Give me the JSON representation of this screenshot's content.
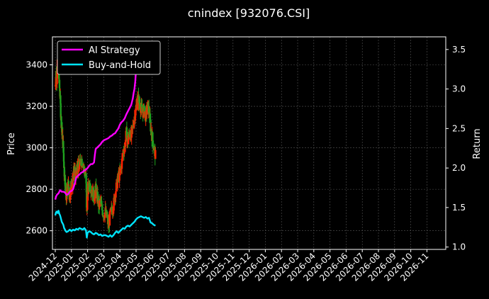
{
  "chart_data": {
    "type": "line",
    "title": "cnindex [932076.CSI]",
    "xlabel": "",
    "ylabel_left": "Price",
    "ylabel_right": "Return",
    "x_ticks": [
      "2024-12",
      "2025-01",
      "2025-02",
      "2025-03",
      "2025-04",
      "2025-05",
      "2025-06",
      "2025-07",
      "2025-08",
      "2025-09",
      "2025-10",
      "2025-11",
      "2025-12",
      "2026-01",
      "2026-02",
      "2026-03",
      "2026-04",
      "2026-05",
      "2026-06",
      "2026-07",
      "2026-08",
      "2026-09",
      "2026-10",
      "2026-11"
    ],
    "y_left_ticks": [
      2600,
      2800,
      3000,
      3200,
      3400
    ],
    "y_left_range": [
      2510,
      3535
    ],
    "y_right_ticks": [
      "1.0",
      "1.5",
      "2.0",
      "2.5",
      "3.0",
      "3.5"
    ],
    "y_right_range": [
      0.97,
      3.66
    ],
    "grid": true,
    "legend_position": "top-left",
    "colors": {
      "up": "#ff2200",
      "down": "#1fa31f",
      "strategy": "#ff00ff",
      "buyhold": "#00e5ff",
      "background": "#000000",
      "grid": "#555555"
    },
    "series": [
      {
        "name": "AI Strategy",
        "axis": "right",
        "points": [
          [
            0,
            1.6
          ],
          [
            0.05,
            1.64
          ],
          [
            0.1,
            1.66
          ],
          [
            0.2,
            1.68
          ],
          [
            0.3,
            1.72
          ],
          [
            0.4,
            1.7
          ],
          [
            0.5,
            1.7
          ],
          [
            0.6,
            1.69
          ],
          [
            0.7,
            1.66
          ],
          [
            0.8,
            1.67
          ],
          [
            0.9,
            1.7
          ],
          [
            1.0,
            1.71
          ],
          [
            1.1,
            1.73
          ],
          [
            1.2,
            1.8
          ],
          [
            1.3,
            1.88
          ],
          [
            1.4,
            1.9
          ],
          [
            1.5,
            1.92
          ],
          [
            1.6,
            1.94
          ],
          [
            1.7,
            1.95
          ],
          [
            1.8,
            1.97
          ],
          [
            1.9,
            1.98
          ],
          [
            2.0,
            2.0
          ],
          [
            2.1,
            2.03
          ],
          [
            2.2,
            2.05
          ],
          [
            2.3,
            2.05
          ],
          [
            2.4,
            2.07
          ],
          [
            2.45,
            2.17
          ],
          [
            2.5,
            2.24
          ],
          [
            2.6,
            2.26
          ],
          [
            2.7,
            2.28
          ],
          [
            2.8,
            2.3
          ],
          [
            2.9,
            2.33
          ],
          [
            3.0,
            2.35
          ],
          [
            3.1,
            2.36
          ],
          [
            3.2,
            2.37
          ],
          [
            3.3,
            2.38
          ],
          [
            3.4,
            2.4
          ],
          [
            3.5,
            2.41
          ],
          [
            3.6,
            2.43
          ],
          [
            3.7,
            2.44
          ],
          [
            3.8,
            2.47
          ],
          [
            3.9,
            2.5
          ],
          [
            4.0,
            2.55
          ],
          [
            4.1,
            2.58
          ],
          [
            4.2,
            2.6
          ],
          [
            4.3,
            2.63
          ],
          [
            4.4,
            2.68
          ],
          [
            4.5,
            2.72
          ],
          [
            4.6,
            2.76
          ],
          [
            4.7,
            2.8
          ],
          [
            4.8,
            2.88
          ],
          [
            4.85,
            2.95
          ],
          [
            4.9,
            3.0
          ],
          [
            4.95,
            3.1
          ],
          [
            5.0,
            3.25
          ],
          [
            5.05,
            3.3
          ],
          [
            5.1,
            3.37
          ],
          [
            5.2,
            3.4
          ],
          [
            5.3,
            3.42
          ],
          [
            5.4,
            3.45
          ],
          [
            5.5,
            3.47
          ],
          [
            5.6,
            3.48
          ],
          [
            5.7,
            3.5
          ],
          [
            5.8,
            3.52
          ],
          [
            5.9,
            3.55
          ],
          [
            6.0,
            3.56
          ],
          [
            6.1,
            3.55
          ],
          [
            6.2,
            3.56
          ]
        ]
      },
      {
        "name": "Buy-and-Hold",
        "axis": "right",
        "points": [
          [
            0,
            1.4
          ],
          [
            0.05,
            1.44
          ],
          [
            0.1,
            1.45
          ],
          [
            0.15,
            1.43
          ],
          [
            0.2,
            1.46
          ],
          [
            0.25,
            1.42
          ],
          [
            0.3,
            1.4
          ],
          [
            0.35,
            1.36
          ],
          [
            0.4,
            1.32
          ],
          [
            0.45,
            1.3
          ],
          [
            0.5,
            1.28
          ],
          [
            0.55,
            1.24
          ],
          [
            0.6,
            1.22
          ],
          [
            0.65,
            1.2
          ],
          [
            0.7,
            1.19
          ],
          [
            0.8,
            1.2
          ],
          [
            0.9,
            1.22
          ],
          [
            1.0,
            1.2
          ],
          [
            1.1,
            1.22
          ],
          [
            1.2,
            1.21
          ],
          [
            1.3,
            1.23
          ],
          [
            1.4,
            1.22
          ],
          [
            1.5,
            1.24
          ],
          [
            1.6,
            1.23
          ],
          [
            1.7,
            1.22
          ],
          [
            1.8,
            1.24
          ],
          [
            1.9,
            1.21
          ],
          [
            1.95,
            1.12
          ],
          [
            2.0,
            1.18
          ],
          [
            2.1,
            1.2
          ],
          [
            2.2,
            1.19
          ],
          [
            2.3,
            1.17
          ],
          [
            2.4,
            1.16
          ],
          [
            2.5,
            1.18
          ],
          [
            2.6,
            1.17
          ],
          [
            2.7,
            1.15
          ],
          [
            2.8,
            1.16
          ],
          [
            2.9,
            1.14
          ],
          [
            3.0,
            1.15
          ],
          [
            3.1,
            1.15
          ],
          [
            3.2,
            1.14
          ],
          [
            3.3,
            1.13
          ],
          [
            3.4,
            1.15
          ],
          [
            3.5,
            1.13
          ],
          [
            3.6,
            1.15
          ],
          [
            3.7,
            1.18
          ],
          [
            3.8,
            1.2
          ],
          [
            3.9,
            1.18
          ],
          [
            4.0,
            1.2
          ],
          [
            4.1,
            1.22
          ],
          [
            4.2,
            1.24
          ],
          [
            4.3,
            1.23
          ],
          [
            4.4,
            1.26
          ],
          [
            4.5,
            1.27
          ],
          [
            4.6,
            1.26
          ],
          [
            4.7,
            1.28
          ],
          [
            4.8,
            1.3
          ],
          [
            4.9,
            1.32
          ],
          [
            5.0,
            1.35
          ],
          [
            5.1,
            1.37
          ],
          [
            5.2,
            1.38
          ],
          [
            5.3,
            1.39
          ],
          [
            5.4,
            1.38
          ],
          [
            5.5,
            1.37
          ],
          [
            5.6,
            1.38
          ],
          [
            5.7,
            1.36
          ],
          [
            5.8,
            1.37
          ],
          [
            5.9,
            1.31
          ],
          [
            6.0,
            1.3
          ],
          [
            6.1,
            1.28
          ],
          [
            6.2,
            1.27
          ]
        ]
      },
      {
        "name": "Price",
        "axis": "left",
        "style": "candlestick",
        "points": [
          [
            0,
            3300
          ],
          [
            0.05,
            3360
          ],
          [
            0.1,
            3330
          ],
          [
            0.15,
            3420
          ],
          [
            0.2,
            3370
          ],
          [
            0.25,
            3300
          ],
          [
            0.3,
            3250
          ],
          [
            0.35,
            3150
          ],
          [
            0.4,
            3100
          ],
          [
            0.45,
            3050
          ],
          [
            0.5,
            3000
          ],
          [
            0.55,
            2900
          ],
          [
            0.6,
            2840
          ],
          [
            0.65,
            2780
          ],
          [
            0.7,
            2760
          ],
          [
            0.75,
            2790
          ],
          [
            0.8,
            2820
          ],
          [
            0.85,
            2780
          ],
          [
            0.9,
            2750
          ],
          [
            0.95,
            2800
          ],
          [
            1.0,
            2830
          ],
          [
            1.05,
            2810
          ],
          [
            1.1,
            2860
          ],
          [
            1.15,
            2880
          ],
          [
            1.2,
            2900
          ],
          [
            1.25,
            2860
          ],
          [
            1.3,
            2880
          ],
          [
            1.35,
            2920
          ],
          [
            1.4,
            2900
          ],
          [
            1.5,
            2910
          ],
          [
            1.6,
            2950
          ],
          [
            1.7,
            2930
          ],
          [
            1.8,
            2890
          ],
          [
            1.9,
            2860
          ],
          [
            1.95,
            2680
          ],
          [
            2.0,
            2780
          ],
          [
            2.1,
            2830
          ],
          [
            2.2,
            2810
          ],
          [
            2.3,
            2790
          ],
          [
            2.4,
            2760
          ],
          [
            2.5,
            2800
          ],
          [
            2.6,
            2760
          ],
          [
            2.7,
            2720
          ],
          [
            2.8,
            2740
          ],
          [
            2.9,
            2700
          ],
          [
            3.0,
            2680
          ],
          [
            3.1,
            2690
          ],
          [
            3.2,
            2660
          ],
          [
            3.3,
            2620
          ],
          [
            3.4,
            2680
          ],
          [
            3.5,
            2700
          ],
          [
            3.6,
            2720
          ],
          [
            3.7,
            2780
          ],
          [
            3.8,
            2820
          ],
          [
            3.9,
            2860
          ],
          [
            4.0,
            2870
          ],
          [
            4.1,
            2920
          ],
          [
            4.2,
            2980
          ],
          [
            4.3,
            3010
          ],
          [
            4.4,
            3070
          ],
          [
            4.5,
            3030
          ],
          [
            4.6,
            3080
          ],
          [
            4.7,
            3050
          ],
          [
            4.8,
            3100
          ],
          [
            4.9,
            3150
          ],
          [
            5.0,
            3190
          ],
          [
            5.1,
            3240
          ],
          [
            5.2,
            3220
          ],
          [
            5.3,
            3190
          ],
          [
            5.4,
            3170
          ],
          [
            5.5,
            3180
          ],
          [
            5.6,
            3150
          ],
          [
            5.7,
            3200
          ],
          [
            5.8,
            3180
          ],
          [
            5.9,
            3100
          ],
          [
            6.0,
            3050
          ],
          [
            6.1,
            3000
          ],
          [
            6.2,
            2960
          ]
        ]
      }
    ]
  }
}
